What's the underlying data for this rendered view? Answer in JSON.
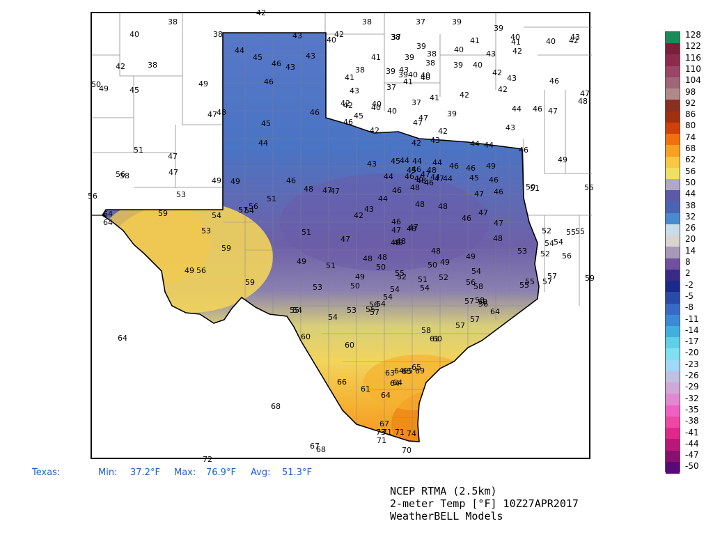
{
  "region_label": "Texas:",
  "stats": {
    "min_label": "Min:",
    "min_value": "37.2°F",
    "max_label": "Max:",
    "max_value": "76.9°F",
    "avg_label": "Avg:",
    "avg_value": "51.3°F"
  },
  "footer": {
    "line1": "NCEP RTMA (2.5km)",
    "line2": "2-meter Temp [°F] 10Z27APR2017",
    "line3": "WeatherBELL Models"
  },
  "colorbar": {
    "labels": [
      "128",
      "122",
      "116",
      "110",
      "104",
      "98",
      "92",
      "86",
      "80",
      "74",
      "68",
      "62",
      "56",
      "50",
      "44",
      "38",
      "32",
      "26",
      "20",
      "14",
      "8",
      "2",
      "-2",
      "-5",
      "-8",
      "-11",
      "-14",
      "-17",
      "-20",
      "-23",
      "-26",
      "-29",
      "-32",
      "-35",
      "-38",
      "-41",
      "-44",
      "-47",
      "-50"
    ],
    "colors": [
      "#1a8a5a",
      "#7a1f3a",
      "#8e2a4e",
      "#9a4466",
      "#a06677",
      "#b08a8a",
      "#8a3020",
      "#a03010",
      "#d0400a",
      "#f07010",
      "#f8a020",
      "#f8c840",
      "#f0e060",
      "#b0a8c8",
      "#5c5aa8",
      "#4a64b4",
      "#4a8ad0",
      "#c8dde8",
      "#d8d4d0",
      "#a898b8",
      "#7050a0",
      "#3a2a88",
      "#1a2a8a",
      "#2a4aa8",
      "#3a6ac8",
      "#3a8ad8",
      "#40b0e0",
      "#60d0e8",
      "#80e0f0",
      "#a0d8f8",
      "#c0c0e0",
      "#d0a8d8",
      "#e088d0",
      "#f060c0",
      "#f048a0",
      "#e02888",
      "#b81878",
      "#8a1070",
      "#5a0a78"
    ]
  },
  "stations": [
    [
      "42",
      375,
      18
    ],
    [
      "38",
      248,
      31
    ],
    [
      "38",
      527,
      31
    ],
    [
      "37",
      604,
      31
    ],
    [
      "39",
      656,
      31
    ],
    [
      "39",
      716,
      40
    ],
    [
      "40",
      193,
      49
    ],
    [
      "38",
      313,
      49
    ],
    [
      "43",
      427,
      51
    ],
    [
      "42",
      487,
      49
    ],
    [
      "40",
      476,
      57
    ],
    [
      "37",
      569,
      53
    ],
    [
      "38",
      568,
      53
    ],
    [
      "41",
      682,
      58
    ],
    [
      "40",
      659,
      71
    ],
    [
      "39",
      605,
      66
    ],
    [
      "40",
      740,
      53
    ],
    [
      "41",
      741,
      60
    ],
    [
      "42",
      743,
      73
    ],
    [
      "40",
      791,
      59
    ],
    [
      "43",
      826,
      53
    ],
    [
      "42",
      824,
      58
    ],
    [
      "44",
      344,
      72
    ],
    [
      "45",
      370,
      82
    ],
    [
      "46",
      397,
      91
    ],
    [
      "43",
      417,
      96
    ],
    [
      "43",
      446,
      80
    ],
    [
      "41",
      540,
      82
    ],
    [
      "39",
      588,
      82
    ],
    [
      "38",
      620,
      77
    ],
    [
      "38",
      618,
      90
    ],
    [
      "39",
      658,
      93
    ],
    [
      "40",
      686,
      93
    ],
    [
      "43",
      705,
      77
    ],
    [
      "42",
      173,
      95
    ],
    [
      "38",
      219,
      93
    ],
    [
      "38",
      517,
      100
    ],
    [
      "39",
      561,
      102
    ],
    [
      "43",
      580,
      100
    ],
    [
      "40",
      593,
      107
    ],
    [
      "40",
      611,
      108
    ],
    [
      "39",
      579,
      107
    ],
    [
      "41",
      586,
      117
    ],
    [
      "41",
      502,
      111
    ],
    [
      "42",
      714,
      104
    ],
    [
      "43",
      735,
      112
    ],
    [
      "46",
      386,
      117
    ],
    [
      "49",
      292,
      120
    ],
    [
      "45",
      193,
      129
    ],
    [
      "50",
      138,
      121
    ],
    [
      "49",
      149,
      127
    ],
    [
      "43",
      509,
      130
    ],
    [
      "37",
      562,
      125
    ],
    [
      "40",
      611,
      111
    ],
    [
      "42",
      667,
      136
    ],
    [
      "42",
      722,
      128
    ],
    [
      "46",
      796,
      116
    ],
    [
      "47",
      840,
      134
    ],
    [
      "48",
      837,
      145
    ],
    [
      "42",
      496,
      148
    ],
    [
      "42",
      500,
      151
    ],
    [
      "40",
      541,
      149
    ],
    [
      "40",
      540,
      154
    ],
    [
      "37",
      598,
      147
    ],
    [
      "41",
      624,
      140
    ],
    [
      "40",
      563,
      159
    ],
    [
      "39",
      649,
      163
    ],
    [
      "44",
      742,
      156
    ],
    [
      "46",
      772,
      156
    ],
    [
      "47",
      794,
      159
    ],
    [
      "46",
      452,
      161
    ],
    [
      "47",
      305,
      164
    ],
    [
      "48",
      318,
      161
    ],
    [
      "46",
      500,
      175
    ],
    [
      "45",
      515,
      166
    ],
    [
      "47",
      608,
      169
    ],
    [
      "47",
      600,
      176
    ],
    [
      "42",
      538,
      187
    ],
    [
      "42",
      598,
      205
    ],
    [
      "42",
      636,
      188
    ],
    [
      "43",
      625,
      201
    ],
    [
      "43",
      733,
      183
    ],
    [
      "45",
      382,
      177
    ],
    [
      "44",
      378,
      205
    ],
    [
      "44",
      682,
      206
    ],
    [
      "44",
      702,
      208
    ],
    [
      "46",
      752,
      215
    ],
    [
      "49",
      808,
      229
    ],
    [
      "43",
      534,
      235
    ],
    [
      "45",
      568,
      231
    ],
    [
      "44",
      581,
      230
    ],
    [
      "44",
      599,
      231
    ],
    [
      "44",
      628,
      233
    ],
    [
      "46",
      652,
      238
    ],
    [
      "46",
      676,
      241
    ],
    [
      "49",
      705,
      238
    ],
    [
      "45",
      591,
      244
    ],
    [
      "46",
      598,
      243
    ],
    [
      "48",
      620,
      244
    ],
    [
      "47",
      611,
      250
    ],
    [
      "44",
      558,
      253
    ],
    [
      "46",
      588,
      253
    ],
    [
      "45",
      602,
      256
    ],
    [
      "48",
      605,
      259
    ],
    [
      "46",
      616,
      262
    ],
    [
      "44",
      625,
      254
    ],
    [
      "47",
      631,
      256
    ],
    [
      "44",
      643,
      256
    ],
    [
      "45",
      681,
      255
    ],
    [
      "46",
      709,
      258
    ],
    [
      "56",
      173,
      250
    ],
    [
      "58",
      179,
      252
    ],
    [
      "47",
      248,
      224
    ],
    [
      "47",
      249,
      247
    ],
    [
      "51",
      199,
      215
    ],
    [
      "53",
      260,
      279
    ],
    [
      "49",
      311,
      259
    ],
    [
      "49",
      338,
      260
    ],
    [
      "46",
      418,
      259
    ],
    [
      "48",
      443,
      271
    ],
    [
      "47",
      470,
      273
    ],
    [
      "47",
      481,
      274
    ],
    [
      "51",
      390,
      285
    ],
    [
      "44",
      550,
      285
    ],
    [
      "46",
      570,
      273
    ],
    [
      "48",
      596,
      269
    ],
    [
      "47",
      688,
      278
    ],
    [
      "46",
      716,
      275
    ],
    [
      "50",
      762,
      268
    ],
    [
      "51",
      768,
      270
    ],
    [
      "55",
      846,
      269
    ],
    [
      "56",
      133,
      281
    ],
    [
      "64",
      155,
      307
    ],
    [
      "64",
      155,
      319
    ],
    [
      "59",
      234,
      306
    ],
    [
      "54",
      311,
      309
    ],
    [
      "56",
      364,
      296
    ],
    [
      "57",
      349,
      301
    ],
    [
      "54",
      358,
      302
    ],
    [
      "43",
      530,
      300
    ],
    [
      "42",
      515,
      309
    ],
    [
      "48",
      603,
      293
    ],
    [
      "48",
      636,
      296
    ],
    [
      "47",
      694,
      305
    ],
    [
      "46",
      670,
      313
    ],
    [
      "47",
      716,
      320
    ],
    [
      "46",
      569,
      318
    ],
    [
      "47",
      594,
      326
    ],
    [
      "53",
      296,
      331
    ],
    [
      "51",
      440,
      333
    ],
    [
      "47",
      496,
      343
    ],
    [
      "47",
      569,
      330
    ],
    [
      "48",
      591,
      328
    ],
    [
      "49",
      568,
      348
    ],
    [
      "49",
      572,
      348
    ],
    [
      "48",
      576,
      346
    ],
    [
      "48",
      715,
      342
    ],
    [
      "52",
      785,
      331
    ],
    [
      "55",
      820,
      333
    ],
    [
      "55",
      833,
      332
    ],
    [
      "54",
      789,
      349
    ],
    [
      "54",
      802,
      347
    ],
    [
      "53",
      750,
      360
    ],
    [
      "59",
      325,
      356
    ],
    [
      "49",
      272,
      388
    ],
    [
      "56",
      289,
      388
    ],
    [
      "49",
      433,
      375
    ],
    [
      "51",
      475,
      381
    ],
    [
      "48",
      549,
      369
    ],
    [
      "48",
      528,
      371
    ],
    [
      "50",
      547,
      383
    ],
    [
      "48",
      626,
      360
    ],
    [
      "50",
      621,
      380
    ],
    [
      "49",
      639,
      376
    ],
    [
      "49",
      676,
      368
    ],
    [
      "52",
      783,
      364
    ],
    [
      "56",
      814,
      367
    ],
    [
      "59",
      359,
      405
    ],
    [
      "53",
      456,
      412
    ],
    [
      "50",
      510,
      410
    ],
    [
      "49",
      517,
      397
    ],
    [
      "55",
      574,
      392
    ],
    [
      "52",
      577,
      397
    ],
    [
      "51",
      607,
      401
    ],
    [
      "52",
      637,
      398
    ],
    [
      "54",
      684,
      389
    ],
    [
      "57",
      793,
      396
    ],
    [
      "57",
      786,
      404
    ],
    [
      "59",
      847,
      399
    ],
    [
      "54",
      567,
      415
    ],
    [
      "54",
      610,
      413
    ],
    [
      "56",
      676,
      405
    ],
    [
      "58",
      687,
      411
    ],
    [
      "55",
      753,
      409
    ],
    [
      "55",
      761,
      404
    ],
    [
      "54",
      557,
      426
    ],
    [
      "56",
      537,
      437
    ],
    [
      "54",
      547,
      436
    ],
    [
      "57",
      674,
      432
    ],
    [
      "58",
      689,
      431
    ],
    [
      "58",
      693,
      433
    ],
    [
      "56",
      694,
      436
    ],
    [
      "55",
      423,
      445
    ],
    [
      "54",
      427,
      445
    ],
    [
      "54",
      478,
      455
    ],
    [
      "53",
      505,
      445
    ],
    [
      "55",
      532,
      444
    ],
    [
      "57",
      538,
      448
    ],
    [
      "57",
      682,
      458
    ],
    [
      "64",
      711,
      447
    ],
    [
      "58",
      612,
      474
    ],
    [
      "57",
      661,
      467
    ],
    [
      "61",
      624,
      486
    ],
    [
      "60",
      628,
      486
    ],
    [
      "60",
      439,
      483
    ],
    [
      "64",
      176,
      485
    ],
    [
      "60",
      502,
      495
    ],
    [
      "64",
      573,
      532
    ],
    [
      "65",
      584,
      533
    ],
    [
      "65",
      586,
      532
    ],
    [
      "69",
      603,
      532
    ],
    [
      "63",
      560,
      535
    ],
    [
      "65",
      598,
      527
    ],
    [
      "64",
      567,
      550
    ],
    [
      "66",
      491,
      548
    ],
    [
      "61",
      525,
      558
    ],
    [
      "64",
      554,
      567
    ],
    [
      "64",
      571,
      549
    ],
    [
      "68",
      396,
      583
    ],
    [
      "67",
      552,
      608
    ],
    [
      "73",
      547,
      620
    ],
    [
      "71",
      556,
      620
    ],
    [
      "71",
      574,
      620
    ],
    [
      "74",
      591,
      622
    ],
    [
      "71",
      548,
      632
    ],
    [
      "70",
      584,
      646
    ],
    [
      "67",
      452,
      640
    ],
    [
      "68",
      461,
      645
    ],
    [
      "72",
      298,
      659
    ]
  ]
}
